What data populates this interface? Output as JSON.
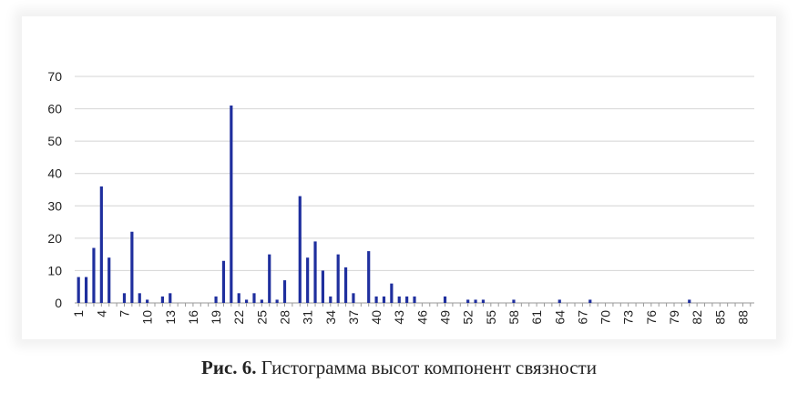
{
  "caption": {
    "label": "Рис. 6.",
    "text": "Гистограмма высот компонент связности"
  },
  "chart_data": {
    "type": "bar",
    "title": "",
    "xlabel": "",
    "ylabel": "",
    "ylim": [
      0,
      70
    ],
    "yticks": [
      0,
      10,
      20,
      30,
      40,
      50,
      60,
      70
    ],
    "grid": true,
    "legend": "none",
    "bar_color": "#1f2f9e",
    "categories": [
      1,
      2,
      3,
      4,
      5,
      6,
      7,
      8,
      9,
      10,
      11,
      12,
      13,
      14,
      15,
      16,
      17,
      18,
      19,
      20,
      21,
      22,
      23,
      24,
      25,
      26,
      27,
      28,
      29,
      30,
      31,
      32,
      33,
      34,
      35,
      36,
      37,
      38,
      39,
      40,
      41,
      42,
      43,
      44,
      45,
      46,
      47,
      48,
      49,
      50,
      51,
      52,
      53,
      54,
      55,
      56,
      57,
      58,
      59,
      60,
      61,
      62,
      63,
      64,
      65,
      66,
      67,
      68,
      69,
      70,
      71,
      72,
      73,
      74,
      75,
      76,
      77,
      78,
      79,
      80,
      81,
      82,
      83,
      84,
      85,
      86,
      87,
      88,
      89
    ],
    "tick_labels": [
      "1",
      "4",
      "7",
      "10",
      "13",
      "16",
      "19",
      "22",
      "25",
      "28",
      "31",
      "34",
      "37",
      "40",
      "43",
      "46",
      "49",
      "52",
      "55",
      "58",
      "61",
      "64",
      "67",
      "70",
      "73",
      "76",
      "79",
      "82",
      "85",
      "88"
    ],
    "values": [
      8,
      8,
      17,
      36,
      14,
      0,
      3,
      22,
      3,
      1,
      0,
      2,
      3,
      0,
      0,
      0,
      0,
      0,
      2,
      13,
      61,
      3,
      1,
      3,
      1,
      15,
      1,
      7,
      0,
      33,
      14,
      19,
      10,
      2,
      15,
      11,
      3,
      0,
      16,
      2,
      2,
      6,
      2,
      2,
      2,
      0,
      0,
      0,
      2,
      0,
      0,
      1,
      1,
      1,
      0,
      0,
      0,
      1,
      0,
      0,
      0,
      0,
      0,
      1,
      0,
      0,
      0,
      1,
      0,
      0,
      0,
      0,
      0,
      0,
      0,
      0,
      0,
      0,
      0,
      0,
      1,
      0,
      0,
      0,
      0,
      0,
      0,
      0,
      0
    ]
  }
}
